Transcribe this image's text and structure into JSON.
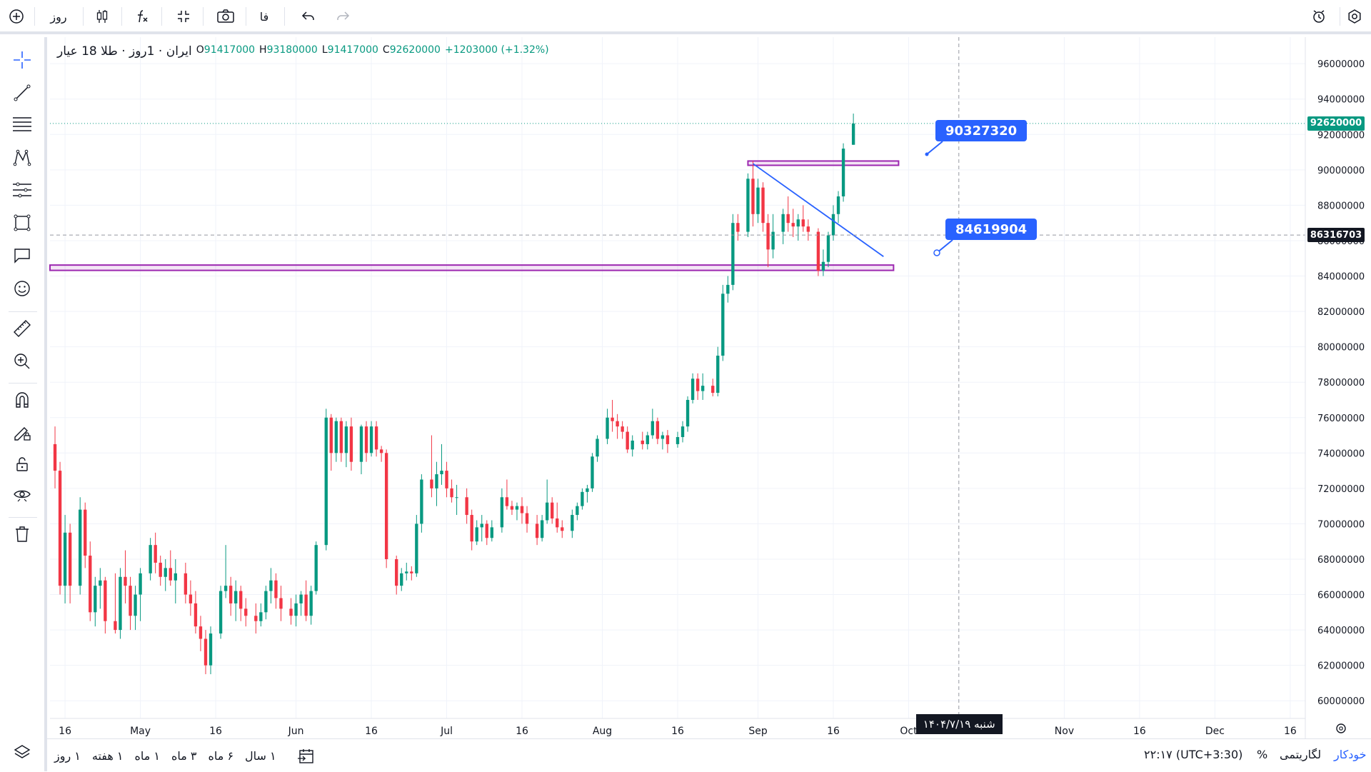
{
  "toolbar": {
    "interval": "روز",
    "lang": "فا"
  },
  "legend": {
    "symbol": "طلا 18 عیار",
    "exchange": "ایران",
    "interval": "1روز",
    "o_label": "O",
    "o": "91417000",
    "h_label": "H",
    "h": "93180000",
    "l_label": "L",
    "l": "91417000",
    "c_label": "C",
    "c": "92620000",
    "change": "+1203000 (+1.32%)"
  },
  "price_axis": {
    "labels": [
      "96000000",
      "94000000",
      "92000000",
      "90000000",
      "88000000",
      "86000000",
      "84000000",
      "82000000",
      "80000000",
      "78000000",
      "76000000",
      "74000000",
      "72000000",
      "70000000",
      "68000000",
      "66000000",
      "64000000",
      "62000000",
      "60000000"
    ],
    "last_price": "92620000",
    "crosshair_price": "86316703"
  },
  "time_axis": {
    "labels": [
      "16",
      "May",
      "16",
      "Jun",
      "16",
      "Jul",
      "16",
      "Aug",
      "16",
      "Sep",
      "16",
      "Oct",
      "Nov",
      "16",
      "Dec",
      "16"
    ],
    "crosshair_date": "شنبه ۱۴۰۴/۷/۱۹"
  },
  "callouts": {
    "upper": "90327320",
    "lower": "84619904"
  },
  "bottom": {
    "ranges": [
      "۱ روز",
      "۱ هفته",
      "۱ ماه",
      "۳ ماه",
      "۶ ماه",
      "۱ سال"
    ],
    "time": "۲۲:۱۷ (UTC+3:30)",
    "percent": "%",
    "log": "لگاریتمی",
    "auto": "خودکار"
  },
  "colors": {
    "up": "#089981",
    "down": "#f23645",
    "accent": "#2962ff",
    "zone": "#9c27b0"
  },
  "chart_data": {
    "type": "candlestick",
    "ylim": [
      59000000,
      97500000
    ],
    "xlim": [
      "2025-04-13",
      "2025-12-19"
    ],
    "candles": [
      [
        "2025-04-14",
        74500000,
        75500000,
        72000000,
        73000000
      ],
      [
        "2025-04-15",
        73000000,
        73500000,
        66000000,
        66500000
      ],
      [
        "2025-04-16",
        66500000,
        70500000,
        65500000,
        69500000
      ],
      [
        "2025-04-17",
        69500000,
        70000000,
        65500000,
        66500000
      ],
      [
        "2025-04-19",
        66500000,
        71500000,
        66000000,
        70800000
      ],
      [
        "2025-04-20",
        70800000,
        71200000,
        67500000,
        68200000
      ],
      [
        "2025-04-21",
        68200000,
        69000000,
        64500000,
        65000000
      ],
      [
        "2025-04-22",
        65000000,
        67000000,
        64200000,
        66500000
      ],
      [
        "2025-04-23",
        66500000,
        67500000,
        65200000,
        66800000
      ],
      [
        "2025-04-24",
        66800000,
        67000000,
        63800000,
        64500000
      ],
      [
        "2025-04-26",
        64500000,
        67200000,
        63800000,
        64000000
      ],
      [
        "2025-04-27",
        64000000,
        67500000,
        63500000,
        67000000
      ],
      [
        "2025-04-28",
        67000000,
        68500000,
        65500000,
        66500000
      ],
      [
        "2025-04-29",
        66500000,
        67000000,
        64000000,
        64800000
      ],
      [
        "2025-04-30",
        64800000,
        66500000,
        64000000,
        66000000
      ],
      [
        "2025-05-01",
        66000000,
        67500000,
        64500000,
        67200000
      ],
      [
        "2025-05-03",
        67200000,
        69200000,
        66800000,
        68800000
      ],
      [
        "2025-05-04",
        68800000,
        69500000,
        67200000,
        67800000
      ],
      [
        "2025-05-05",
        67800000,
        68200000,
        66500000,
        67000000
      ],
      [
        "2025-05-06",
        67000000,
        68000000,
        66200000,
        67500000
      ],
      [
        "2025-05-07",
        67500000,
        68500000,
        66500000,
        66800000
      ],
      [
        "2025-05-08",
        66800000,
        68000000,
        65500000,
        67200000
      ],
      [
        "2025-05-10",
        67200000,
        67800000,
        65500000,
        66000000
      ],
      [
        "2025-05-11",
        66000000,
        66800000,
        64800000,
        65500000
      ],
      [
        "2025-05-12",
        65500000,
        66200000,
        63800000,
        64200000
      ],
      [
        "2025-05-13",
        64200000,
        64800000,
        62800000,
        63500000
      ],
      [
        "2025-05-14",
        63500000,
        64000000,
        61500000,
        62000000
      ],
      [
        "2025-05-15",
        62000000,
        64200000,
        61500000,
        63800000
      ],
      [
        "2025-05-17",
        63800000,
        66500000,
        63500000,
        66200000
      ],
      [
        "2025-05-18",
        66200000,
        68800000,
        65800000,
        66500000
      ],
      [
        "2025-05-19",
        66500000,
        67000000,
        64800000,
        65500000
      ],
      [
        "2025-05-20",
        65500000,
        66800000,
        64500000,
        66200000
      ],
      [
        "2025-05-21",
        66200000,
        66500000,
        64500000,
        65200000
      ],
      [
        "2025-05-22",
        65200000,
        65800000,
        64200000,
        64800000
      ],
      [
        "2025-05-24",
        64800000,
        65500000,
        63800000,
        64500000
      ],
      [
        "2025-05-25",
        64500000,
        65500000,
        64200000,
        65000000
      ],
      [
        "2025-05-26",
        65000000,
        66500000,
        64600000,
        66200000
      ],
      [
        "2025-05-27",
        66200000,
        67500000,
        65500000,
        66800000
      ],
      [
        "2025-05-28",
        66800000,
        67200000,
        65200000,
        65800000
      ],
      [
        "2025-05-29",
        65800000,
        66500000,
        64500000,
        65200000
      ],
      [
        "2025-05-31",
        65200000,
        65800000,
        64300000,
        64800000
      ],
      [
        "2025-06-01",
        64800000,
        66000000,
        64200000,
        65500000
      ],
      [
        "2025-06-02",
        65500000,
        66200000,
        64800000,
        66000000
      ],
      [
        "2025-06-03",
        66000000,
        66800000,
        64500000,
        64800000
      ],
      [
        "2025-06-04",
        64800000,
        66500000,
        64300000,
        66200000
      ],
      [
        "2025-06-05",
        66200000,
        69000000,
        66000000,
        68800000
      ],
      [
        "2025-06-07",
        68800000,
        76500000,
        68500000,
        76000000
      ],
      [
        "2025-06-08",
        76000000,
        76200000,
        73000000,
        74000000
      ],
      [
        "2025-06-09",
        74000000,
        76000000,
        73500000,
        75800000
      ],
      [
        "2025-06-10",
        75800000,
        76000000,
        73500000,
        74000000
      ],
      [
        "2025-06-11",
        74000000,
        75800000,
        73200000,
        75500000
      ],
      [
        "2025-06-12",
        75500000,
        76000000,
        73000000,
        73500000
      ],
      [
        "2025-06-14",
        73500000,
        75600000,
        72800000,
        75500000
      ],
      [
        "2025-06-15",
        75500000,
        75800000,
        73500000,
        74000000
      ],
      [
        "2025-06-16",
        74000000,
        75800000,
        73800000,
        75500000
      ],
      [
        "2025-06-17",
        75500000,
        75800000,
        73800000,
        74200000
      ],
      [
        "2025-06-18",
        74200000,
        74400000,
        73500000,
        74000000
      ],
      [
        "2025-06-19",
        74000000,
        74200000,
        67500000,
        68000000
      ],
      [
        "2025-06-21",
        68000000,
        68200000,
        66000000,
        66500000
      ],
      [
        "2025-06-22",
        66500000,
        67500000,
        66200000,
        67200000
      ],
      [
        "2025-06-23",
        67200000,
        67800000,
        66800000,
        67300000
      ],
      [
        "2025-06-24",
        67300000,
        67600000,
        66800000,
        67200000
      ],
      [
        "2025-06-25",
        67200000,
        70500000,
        67000000,
        70000000
      ],
      [
        "2025-06-26",
        70000000,
        72800000,
        69500000,
        72500000
      ],
      [
        "2025-06-28",
        72500000,
        75000000,
        71500000,
        72000000
      ],
      [
        "2025-06-29",
        72000000,
        73500000,
        71000000,
        72800000
      ],
      [
        "2025-06-30",
        72800000,
        74500000,
        72200000,
        73000000
      ],
      [
        "2025-07-01",
        73000000,
        73500000,
        71500000,
        72000000
      ],
      [
        "2025-07-02",
        72000000,
        72500000,
        71200000,
        71500000
      ],
      [
        "2025-07-03",
        71500000,
        72200000,
        70500000,
        71500000
      ],
      [
        "2025-07-05",
        71500000,
        72000000,
        70000000,
        70500000
      ],
      [
        "2025-07-06",
        70500000,
        70800000,
        68500000,
        69000000
      ],
      [
        "2025-07-07",
        69000000,
        70200000,
        68800000,
        69800000
      ],
      [
        "2025-07-08",
        69800000,
        70500000,
        69000000,
        70000000
      ],
      [
        "2025-07-09",
        70000000,
        70200000,
        68800000,
        69200000
      ],
      [
        "2025-07-10",
        69200000,
        70200000,
        69000000,
        69800000
      ],
      [
        "2025-07-12",
        69800000,
        72000000,
        69500000,
        71500000
      ],
      [
        "2025-07-13",
        71500000,
        72500000,
        70800000,
        71000000
      ],
      [
        "2025-07-14",
        71000000,
        71300000,
        70500000,
        70800000
      ],
      [
        "2025-07-15",
        70800000,
        71200000,
        70200000,
        71000000
      ],
      [
        "2025-07-16",
        71000000,
        71500000,
        70000000,
        70600000
      ],
      [
        "2025-07-17",
        70600000,
        71000000,
        69500000,
        70000000
      ],
      [
        "2025-07-19",
        70000000,
        70500000,
        68800000,
        69200000
      ],
      [
        "2025-07-20",
        69200000,
        70500000,
        69000000,
        70200000
      ],
      [
        "2025-07-21",
        70200000,
        72500000,
        70000000,
        71200000
      ],
      [
        "2025-07-22",
        71200000,
        71500000,
        70000000,
        70300000
      ],
      [
        "2025-07-23",
        70300000,
        71200000,
        69500000,
        69800000
      ],
      [
        "2025-07-24",
        69800000,
        70200000,
        69200000,
        69600000
      ],
      [
        "2025-07-26",
        69600000,
        70800000,
        69200000,
        70500000
      ],
      [
        "2025-07-27",
        70500000,
        71200000,
        70200000,
        71000000
      ],
      [
        "2025-07-28",
        71000000,
        72000000,
        70800000,
        71800000
      ],
      [
        "2025-07-29",
        71800000,
        72200000,
        71200000,
        72000000
      ],
      [
        "2025-07-30",
        72000000,
        74000000,
        71800000,
        73800000
      ],
      [
        "2025-07-31",
        73800000,
        75000000,
        73500000,
        74800000
      ],
      [
        "2025-08-02",
        74800000,
        76500000,
        74500000,
        76000000
      ],
      [
        "2025-08-03",
        76000000,
        77000000,
        75200000,
        75800000
      ],
      [
        "2025-08-04",
        75800000,
        76200000,
        74800000,
        75500000
      ],
      [
        "2025-08-05",
        75500000,
        75800000,
        74800000,
        75200000
      ],
      [
        "2025-08-06",
        75200000,
        75500000,
        74000000,
        74200000
      ],
      [
        "2025-08-07",
        74200000,
        75000000,
        73800000,
        74700000
      ],
      [
        "2025-08-09",
        74700000,
        75200000,
        74200000,
        74500000
      ],
      [
        "2025-08-10",
        74500000,
        75200000,
        74200000,
        75000000
      ],
      [
        "2025-08-11",
        75000000,
        76500000,
        74800000,
        75800000
      ],
      [
        "2025-08-12",
        75800000,
        76000000,
        74500000,
        74800000
      ],
      [
        "2025-08-13",
        74800000,
        75200000,
        74200000,
        75000000
      ],
      [
        "2025-08-14",
        75000000,
        75300000,
        74000000,
        74500000
      ],
      [
        "2025-08-16",
        74500000,
        75200000,
        74300000,
        74900000
      ],
      [
        "2025-08-17",
        74900000,
        75800000,
        74600000,
        75500000
      ],
      [
        "2025-08-18",
        75500000,
        77200000,
        75200000,
        77000000
      ],
      [
        "2025-08-19",
        77000000,
        78500000,
        76800000,
        78200000
      ],
      [
        "2025-08-20",
        78200000,
        78500000,
        77000000,
        77500000
      ],
      [
        "2025-08-21",
        77500000,
        78500000,
        77000000,
        77800000
      ],
      [
        "2025-08-23",
        77800000,
        78200000,
        77200000,
        77400000
      ],
      [
        "2025-08-24",
        77400000,
        80000000,
        77200000,
        79500000
      ],
      [
        "2025-08-25",
        79500000,
        83500000,
        79200000,
        83000000
      ],
      [
        "2025-08-26",
        83000000,
        84000000,
        82500000,
        83500000
      ],
      [
        "2025-08-27",
        83500000,
        87500000,
        83200000,
        87000000
      ],
      [
        "2025-08-28",
        87000000,
        87500000,
        86000000,
        86500000
      ],
      [
        "2025-08-30",
        86500000,
        89800000,
        86200000,
        89500000
      ],
      [
        "2025-08-31",
        89500000,
        90500000,
        86800000,
        87500000
      ],
      [
        "2025-09-01",
        87500000,
        89500000,
        87000000,
        89000000
      ],
      [
        "2025-09-02",
        89000000,
        89300000,
        86500000,
        87000000
      ],
      [
        "2025-09-03",
        87000000,
        87500000,
        84500000,
        85500000
      ],
      [
        "2025-09-04",
        85500000,
        87500000,
        85000000,
        86500000
      ],
      [
        "2025-09-06",
        86500000,
        87800000,
        85800000,
        87500000
      ],
      [
        "2025-09-07",
        87500000,
        88500000,
        86500000,
        87000000
      ],
      [
        "2025-09-08",
        87000000,
        87800000,
        86200000,
        86800000
      ],
      [
        "2025-09-09",
        86800000,
        87500000,
        86000000,
        87200000
      ],
      [
        "2025-09-10",
        87200000,
        88000000,
        86500000,
        86800000
      ],
      [
        "2025-09-11",
        86800000,
        87200000,
        86000000,
        86500000
      ],
      [
        "2025-09-13",
        86500000,
        86700000,
        84000000,
        84300000
      ],
      [
        "2025-09-14",
        84300000,
        85500000,
        84000000,
        84800000
      ],
      [
        "2025-09-15",
        84800000,
        86500000,
        84500000,
        86300000
      ],
      [
        "2025-09-16",
        86300000,
        88000000,
        86000000,
        87500000
      ],
      [
        "2025-09-17",
        87500000,
        88800000,
        87000000,
        88500000
      ],
      [
        "2025-09-18",
        88500000,
        91500000,
        88200000,
        91200000
      ],
      [
        "2025-09-20",
        91417000,
        93180000,
        91417000,
        92620000
      ]
    ],
    "zones": [
      {
        "from": "2025-04-13",
        "to": "2025-09-28",
        "low": 84320000,
        "high": 84620000
      },
      {
        "from": "2025-08-30",
        "to": "2025-09-29",
        "low": 90327320,
        "high": 90500000
      }
    ],
    "trendline": {
      "from": [
        "2025-08-31",
        90350000
      ],
      "to": [
        "2025-09-26",
        85100000
      ]
    },
    "crosshair": {
      "date": "2025-10-11",
      "price": 86316703
    }
  }
}
